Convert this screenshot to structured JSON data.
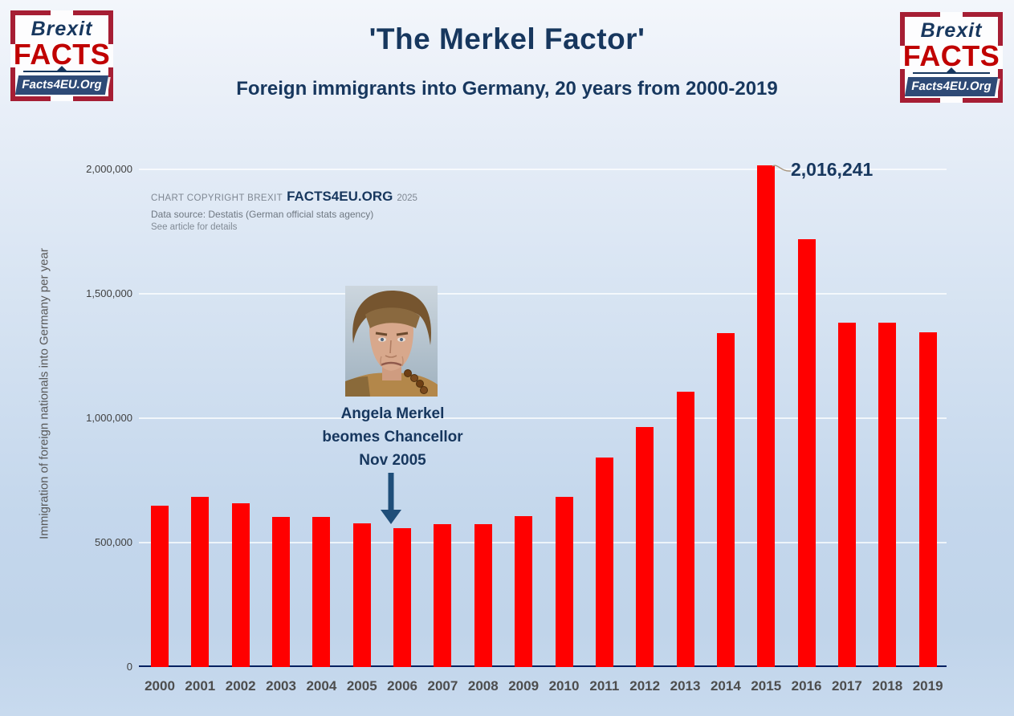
{
  "header": {
    "title": "'The Merkel Factor'",
    "subtitle": "Foreign immigrants into Germany, 20 years from 2000-2019"
  },
  "logo": {
    "brexit": "Brexit",
    "facts": "FACTS",
    "banner": "Facts4EU.Org"
  },
  "copyright": {
    "prefix": "CHART COPYRIGHT BREXIT",
    "brand": "FACTS4EU.ORG",
    "year": "2025",
    "source": "Data source:  Destatis (German official stats agency)",
    "note": "See article for details"
  },
  "annotation": {
    "photo": "angela-merkel-photo",
    "line1": "Angela Merkel",
    "line2": "beomes Chancellor",
    "line3": "Nov 2005"
  },
  "chart_data": {
    "type": "bar",
    "title": "'The Merkel Factor'",
    "subtitle": "Foreign immigrants into Germany, 20 years from 2000-2019",
    "xlabel": "",
    "ylabel": "Immigration of foreign nationals into Germany per year",
    "categories": [
      "2000",
      "2001",
      "2002",
      "2003",
      "2004",
      "2005",
      "2006",
      "2007",
      "2008",
      "2009",
      "2010",
      "2011",
      "2012",
      "2013",
      "2014",
      "2015",
      "2016",
      "2017",
      "2018",
      "2019"
    ],
    "values": [
      649000,
      685000,
      658000,
      602000,
      602000,
      579000,
      558000,
      575000,
      574000,
      606000,
      684000,
      842000,
      966000,
      1108000,
      1343000,
      2016241,
      1719000,
      1384000,
      1384000,
      1346000
    ],
    "ylim": [
      0,
      2100000
    ],
    "y_ticks": [
      {
        "value": 0,
        "label": "0"
      },
      {
        "value": 500000,
        "label": "500,000"
      },
      {
        "value": 1000000,
        "label": "1,000,000"
      },
      {
        "value": 1500000,
        "label": "1,500,000"
      },
      {
        "value": 2000000,
        "label": "2,000,000"
      }
    ],
    "grid": true,
    "legend": false,
    "bar_color": "#ff0000",
    "peak_annotation": {
      "category": "2015",
      "text": "2,016,241"
    }
  },
  "colors": {
    "bar_red": "#ff0000",
    "navy_text": "#17375e",
    "axis_navy": "#002060",
    "logo_red": "#a61e34",
    "facts_red": "#c00000",
    "banner_navy": "#2e4a76",
    "gray_text": "#595959",
    "arrow_blue": "#1f4e79"
  }
}
